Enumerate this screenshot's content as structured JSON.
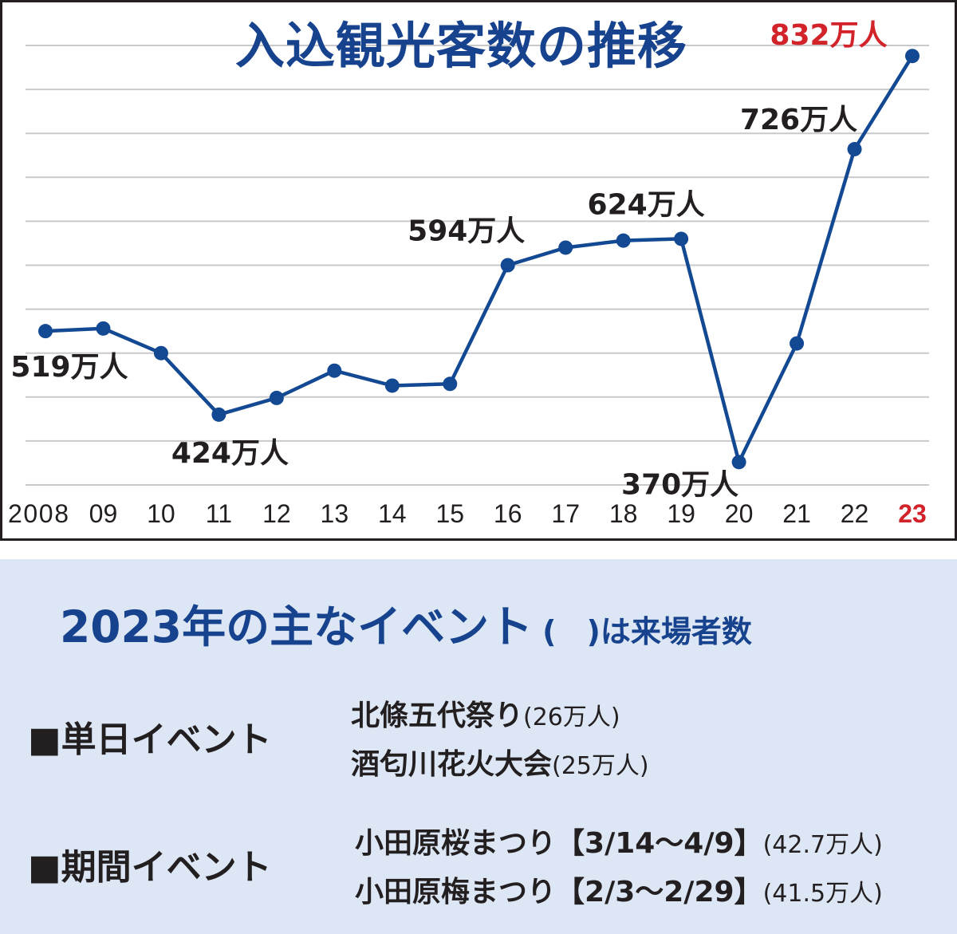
{
  "chart_data": {
    "type": "line",
    "title": "入込観光客数の推移",
    "categories": [
      "2008",
      "09",
      "10",
      "11",
      "12",
      "13",
      "14",
      "15",
      "16",
      "17",
      "18",
      "19",
      "20",
      "21",
      "22",
      "23"
    ],
    "series": [
      {
        "values": [
          519,
          522,
          494,
          424,
          443,
          474,
          457,
          459,
          594,
          614,
          622,
          624,
          370,
          505,
          726,
          832
        ]
      }
    ],
    "point_labels": [
      {
        "index": 0,
        "text": "519万人"
      },
      {
        "index": 3,
        "text": "424万人"
      },
      {
        "index": 8,
        "text": "594万人"
      },
      {
        "index": 11,
        "text": "624万人"
      },
      {
        "index": 12,
        "text": "370万人"
      },
      {
        "index": 14,
        "text": "726万人"
      },
      {
        "index": 15,
        "text": "832万人"
      }
    ],
    "ylim": [
      344,
      844
    ],
    "grid": true,
    "colors": {
      "line": "#134993",
      "axis_text": "#231f20",
      "highlight": "#d2232a",
      "title": "#17438e"
    }
  },
  "events": {
    "heading": "2023年の主なイベント",
    "paren": "(　)",
    "note": "は来場者数",
    "groups": [
      {
        "label": "■単日イベント",
        "items": [
          {
            "name": "北條五代祭り",
            "visitors": "(26万人)"
          },
          {
            "name": "酒匂川花火大会",
            "visitors": "(25万人)"
          }
        ]
      },
      {
        "label": "■期間イベント",
        "items": [
          {
            "name": "小田原桜まつり",
            "period": "【3/14〜4/9】",
            "visitors": "(42.7万人)"
          },
          {
            "name": "小田原梅まつり",
            "period": "【2/3〜2/29】",
            "visitors": "(41.5万人)"
          }
        ]
      }
    ]
  }
}
